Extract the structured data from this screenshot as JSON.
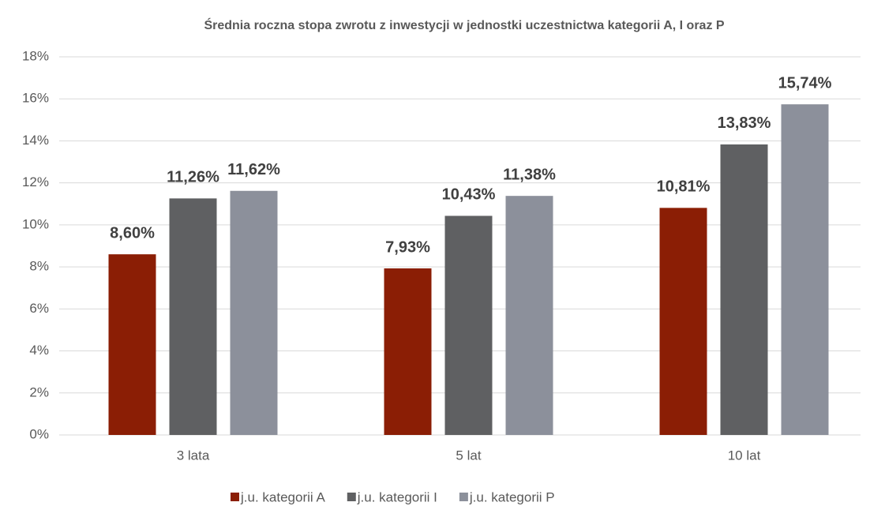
{
  "chart_data": {
    "type": "bar",
    "title": "Średnia roczna stopa zwrotu z inwestycji w jednostki uczestnictwa kategorii A, I oraz P",
    "categories": [
      "3 lata",
      "5 lat",
      "10 lat"
    ],
    "series": [
      {
        "name": "j.u. kategorii A",
        "color": "#8b1e05",
        "values": [
          8.6,
          7.93,
          10.81
        ],
        "value_labels": [
          "8,60%",
          "7,93%",
          "10,81%"
        ]
      },
      {
        "name": "j.u. kategorii I",
        "color": "#5f6062",
        "values": [
          11.26,
          10.43,
          13.83
        ],
        "value_labels": [
          "11,26%",
          "10,43%",
          "13,83%"
        ]
      },
      {
        "name": "j.u. kategorii P",
        "color": "#8c909b",
        "values": [
          11.62,
          11.38,
          15.74
        ],
        "value_labels": [
          "11,62%",
          "11,38%",
          "15,74%"
        ]
      }
    ],
    "ylim": [
      0,
      18
    ],
    "yticks": [
      {
        "value": 0,
        "label": "0%"
      },
      {
        "value": 2,
        "label": "2%"
      },
      {
        "value": 4,
        "label": "4%"
      },
      {
        "value": 6,
        "label": "6%"
      },
      {
        "value": 8,
        "label": "8%"
      },
      {
        "value": 10,
        "label": "10%"
      },
      {
        "value": 12,
        "label": "12%"
      },
      {
        "value": 14,
        "label": "14%"
      },
      {
        "value": 16,
        "label": "16%"
      },
      {
        "value": 18,
        "label": "18%"
      }
    ],
    "grid": true,
    "legend": "bottom"
  }
}
